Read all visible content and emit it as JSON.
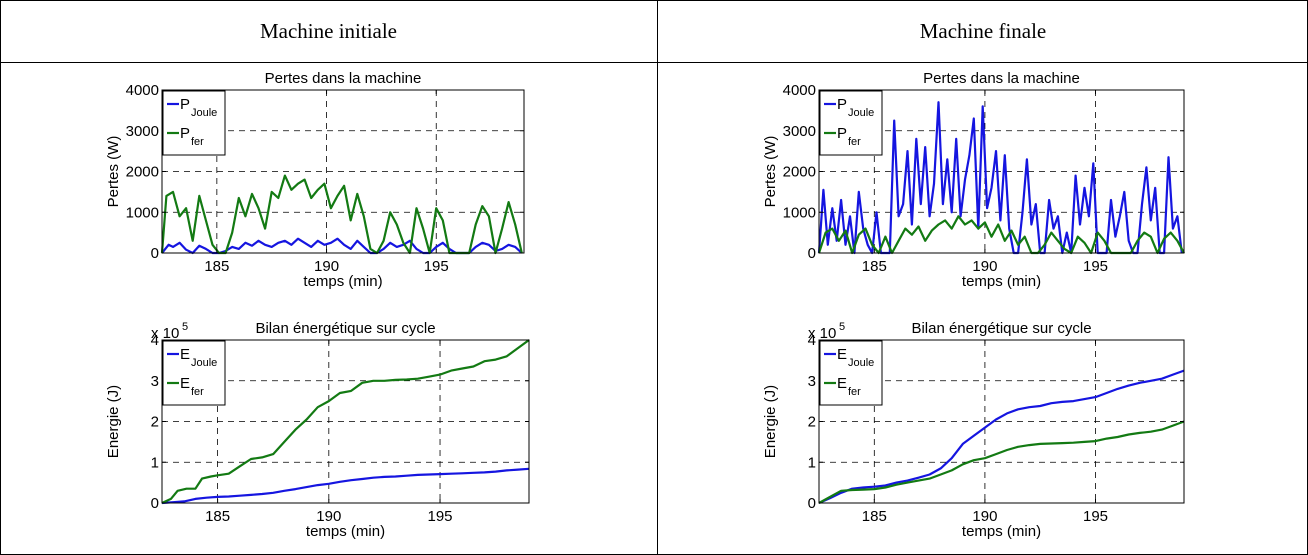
{
  "table": {
    "headers": [
      "Machine initiale",
      "Machine finale"
    ]
  },
  "colors": {
    "joule": "#1515e0",
    "fer": "#137a13",
    "grid": "#000000"
  },
  "chart_data": [
    {
      "type": "line",
      "title": "Pertes dans la machine",
      "xlabel": "temps (min)",
      "ylabel": "Pertes (W)",
      "xlim": [
        182.5,
        199
      ],
      "ylim": [
        0,
        4000
      ],
      "xticks": [
        185,
        190,
        195
      ],
      "yticks": [
        0,
        1000,
        2000,
        3000,
        4000
      ],
      "exponent": "",
      "grid": true,
      "legend_position": "top-left",
      "series": [
        {
          "name": "P",
          "sub": "Joule",
          "color": "#1515e0",
          "x": [
            182.5,
            182.8,
            183.0,
            183.3,
            183.6,
            183.9,
            184.2,
            184.5,
            184.8,
            185.1,
            185.4,
            185.7,
            186.0,
            186.3,
            186.6,
            186.9,
            187.2,
            187.5,
            187.8,
            188.1,
            188.4,
            188.7,
            189.0,
            189.3,
            189.6,
            189.9,
            190.2,
            190.5,
            190.8,
            191.1,
            191.4,
            191.7,
            192.0,
            192.3,
            192.6,
            192.9,
            193.2,
            193.5,
            193.8,
            194.1,
            194.4,
            194.7,
            195.0,
            195.3,
            195.6,
            195.9,
            196.2,
            196.5,
            196.8,
            197.1,
            197.4,
            197.7,
            198.0,
            198.3,
            198.6,
            198.9
          ],
          "y": [
            0,
            200,
            150,
            250,
            80,
            0,
            180,
            100,
            0,
            0,
            50,
            150,
            100,
            250,
            180,
            300,
            200,
            150,
            250,
            300,
            200,
            350,
            250,
            150,
            300,
            200,
            250,
            350,
            200,
            100,
            300,
            150,
            0,
            0,
            100,
            250,
            150,
            200,
            300,
            100,
            0,
            0,
            150,
            250,
            100,
            0,
            0,
            0,
            150,
            250,
            200,
            50,
            100,
            200,
            150,
            0
          ]
        },
        {
          "name": "P",
          "sub": "fer",
          "color": "#137a13",
          "x": [
            182.5,
            182.7,
            183.0,
            183.3,
            183.6,
            183.9,
            184.2,
            184.5,
            184.8,
            185.1,
            185.4,
            185.7,
            186.0,
            186.3,
            186.6,
            186.9,
            187.2,
            187.5,
            187.8,
            188.1,
            188.4,
            188.7,
            189.0,
            189.3,
            189.6,
            189.9,
            190.2,
            190.5,
            190.8,
            191.1,
            191.4,
            191.7,
            192.0,
            192.3,
            192.6,
            192.9,
            193.2,
            193.5,
            193.8,
            194.1,
            194.4,
            194.7,
            195.0,
            195.3,
            195.6,
            195.9,
            196.2,
            196.5,
            196.8,
            197.1,
            197.4,
            197.7,
            198.0,
            198.3,
            198.6,
            198.9
          ],
          "y": [
            0,
            1400,
            1500,
            900,
            1100,
            300,
            1400,
            800,
            200,
            0,
            0,
            500,
            1350,
            900,
            1450,
            1100,
            600,
            1500,
            1350,
            1900,
            1550,
            1700,
            1800,
            1350,
            1550,
            1700,
            1100,
            1400,
            1650,
            800,
            1450,
            900,
            100,
            0,
            300,
            1000,
            700,
            250,
            0,
            1100,
            600,
            0,
            1100,
            800,
            0,
            0,
            0,
            0,
            700,
            1150,
            900,
            0,
            600,
            1250,
            700,
            0
          ]
        }
      ]
    },
    {
      "type": "line",
      "title": "Pertes dans la machine",
      "xlabel": "temps (min)",
      "ylabel": "Pertes (W)",
      "xlim": [
        182.5,
        199
      ],
      "ylim": [
        0,
        4000
      ],
      "xticks": [
        185,
        190,
        195
      ],
      "yticks": [
        0,
        1000,
        2000,
        3000,
        4000
      ],
      "exponent": "",
      "grid": true,
      "legend_position": "top-left",
      "series": [
        {
          "name": "P",
          "sub": "Joule",
          "color": "#1515e0",
          "x": [
            182.5,
            182.7,
            182.9,
            183.1,
            183.3,
            183.5,
            183.7,
            183.9,
            184.1,
            184.3,
            184.5,
            184.7,
            184.9,
            185.1,
            185.3,
            185.5,
            185.7,
            185.9,
            186.1,
            186.3,
            186.5,
            186.7,
            186.9,
            187.1,
            187.3,
            187.5,
            187.7,
            187.9,
            188.1,
            188.3,
            188.5,
            188.7,
            188.9,
            189.1,
            189.3,
            189.5,
            189.7,
            189.9,
            190.1,
            190.3,
            190.5,
            190.7,
            190.9,
            191.1,
            191.3,
            191.5,
            191.7,
            191.9,
            192.1,
            192.3,
            192.5,
            192.7,
            192.9,
            193.1,
            193.3,
            193.5,
            193.7,
            193.9,
            194.1,
            194.3,
            194.5,
            194.7,
            194.9,
            195.1,
            195.3,
            195.5,
            195.7,
            195.9,
            196.1,
            196.3,
            196.5,
            196.7,
            196.9,
            197.1,
            197.3,
            197.5,
            197.7,
            197.9,
            198.1,
            198.3,
            198.5,
            198.7,
            198.9
          ],
          "y": [
            0,
            1550,
            200,
            1100,
            300,
            1300,
            200,
            900,
            0,
            1500,
            600,
            200,
            0,
            1000,
            0,
            0,
            0,
            3250,
            900,
            1200,
            2500,
            700,
            2800,
            1200,
            2600,
            900,
            1700,
            3700,
            1200,
            2300,
            1000,
            2800,
            900,
            1800,
            2400,
            3300,
            600,
            3600,
            1100,
            1600,
            2500,
            800,
            2400,
            600,
            0,
            0,
            1000,
            2300,
            700,
            1200,
            0,
            0,
            1300,
            600,
            900,
            0,
            500,
            0,
            1900,
            700,
            1600,
            900,
            2200,
            0,
            0,
            0,
            1300,
            400,
            900,
            1500,
            300,
            0,
            0,
            1200,
            2100,
            800,
            1600,
            0,
            0,
            2350,
            600,
            900,
            0
          ]
        },
        {
          "name": "P",
          "sub": "fer",
          "color": "#137a13",
          "x": [
            182.5,
            182.8,
            183.1,
            183.4,
            183.7,
            184.0,
            184.3,
            184.6,
            184.9,
            185.2,
            185.5,
            185.8,
            186.1,
            186.4,
            186.7,
            187.0,
            187.3,
            187.6,
            187.9,
            188.2,
            188.5,
            188.8,
            189.1,
            189.4,
            189.7,
            190.0,
            190.3,
            190.6,
            190.9,
            191.2,
            191.5,
            191.8,
            192.1,
            192.4,
            192.7,
            193.0,
            193.3,
            193.6,
            193.9,
            194.2,
            194.5,
            194.8,
            195.1,
            195.4,
            195.7,
            196.0,
            196.3,
            196.6,
            196.9,
            197.2,
            197.5,
            197.8,
            198.1,
            198.4,
            198.7,
            199.0
          ],
          "y": [
            0,
            500,
            600,
            300,
            550,
            0,
            450,
            600,
            200,
            0,
            400,
            0,
            300,
            600,
            450,
            650,
            300,
            550,
            700,
            800,
            600,
            900,
            700,
            800,
            600,
            750,
            400,
            700,
            300,
            550,
            200,
            400,
            0,
            0,
            200,
            500,
            300,
            100,
            0,
            400,
            250,
            0,
            500,
            300,
            0,
            0,
            0,
            0,
            300,
            500,
            400,
            0,
            350,
            500,
            300,
            0
          ]
        }
      ]
    },
    {
      "type": "line",
      "title": "Bilan énergétique sur cycle",
      "xlabel": "temps (min)",
      "ylabel": "Energie (J)",
      "xlim": [
        182.5,
        199
      ],
      "ylim": [
        0,
        4
      ],
      "xticks": [
        185,
        190,
        195
      ],
      "yticks": [
        0,
        1,
        2,
        3,
        4
      ],
      "exponent": "5",
      "grid": true,
      "legend_position": "top-left",
      "series": [
        {
          "name": "E",
          "sub": "Joule",
          "color": "#1515e0",
          "x": [
            182.5,
            183.0,
            183.5,
            184.0,
            184.5,
            185.0,
            185.5,
            186.0,
            186.5,
            187.0,
            187.5,
            188.0,
            188.5,
            189.0,
            189.5,
            190.0,
            190.5,
            191.0,
            191.5,
            192.0,
            192.5,
            193.0,
            193.5,
            194.0,
            194.5,
            195.0,
            195.5,
            196.0,
            196.5,
            197.0,
            197.5,
            198.0,
            198.5,
            199.0
          ],
          "y": [
            0,
            0.02,
            0.04,
            0.1,
            0.13,
            0.15,
            0.16,
            0.18,
            0.2,
            0.22,
            0.25,
            0.3,
            0.34,
            0.39,
            0.44,
            0.47,
            0.52,
            0.56,
            0.59,
            0.62,
            0.64,
            0.65,
            0.67,
            0.69,
            0.7,
            0.71,
            0.72,
            0.73,
            0.74,
            0.75,
            0.77,
            0.8,
            0.82,
            0.84
          ]
        },
        {
          "name": "E",
          "sub": "fer",
          "color": "#137a13",
          "x": [
            182.5,
            182.9,
            183.2,
            183.6,
            184.0,
            184.3,
            184.7,
            185.0,
            185.5,
            186.0,
            186.5,
            187.0,
            187.5,
            188.0,
            188.5,
            189.0,
            189.5,
            190.0,
            190.5,
            191.0,
            191.5,
            192.0,
            192.5,
            193.0,
            193.5,
            194.0,
            194.5,
            195.0,
            195.5,
            196.0,
            196.5,
            197.0,
            197.5,
            198.0,
            198.5,
            199.0
          ],
          "y": [
            0,
            0.1,
            0.3,
            0.35,
            0.35,
            0.6,
            0.65,
            0.68,
            0.72,
            0.9,
            1.08,
            1.12,
            1.2,
            1.5,
            1.8,
            2.05,
            2.35,
            2.5,
            2.7,
            2.75,
            2.95,
            3.0,
            3.0,
            3.02,
            3.03,
            3.05,
            3.1,
            3.15,
            3.25,
            3.3,
            3.35,
            3.48,
            3.52,
            3.6,
            3.8,
            4.0
          ]
        }
      ]
    },
    {
      "type": "line",
      "title": "Bilan énergétique sur cycle",
      "xlabel": "temps (min)",
      "ylabel": "Energie (J)",
      "xlim": [
        182.5,
        199
      ],
      "ylim": [
        0,
        4
      ],
      "xticks": [
        185,
        190,
        195
      ],
      "yticks": [
        0,
        1,
        2,
        3,
        4
      ],
      "exponent": "5",
      "grid": true,
      "legend_position": "top-left",
      "series": [
        {
          "name": "E",
          "sub": "Joule",
          "color": "#1515e0",
          "x": [
            182.5,
            183.0,
            183.5,
            184.0,
            184.5,
            185.0,
            185.5,
            186.0,
            186.5,
            187.0,
            187.5,
            188.0,
            188.5,
            189.0,
            189.5,
            190.0,
            190.5,
            191.0,
            191.5,
            192.0,
            192.5,
            193.0,
            193.5,
            194.0,
            194.5,
            195.0,
            195.5,
            196.0,
            196.5,
            197.0,
            197.5,
            198.0,
            198.5,
            199.0
          ],
          "y": [
            0,
            0.12,
            0.25,
            0.35,
            0.38,
            0.4,
            0.43,
            0.5,
            0.55,
            0.62,
            0.7,
            0.85,
            1.1,
            1.45,
            1.65,
            1.85,
            2.05,
            2.2,
            2.3,
            2.35,
            2.38,
            2.45,
            2.48,
            2.5,
            2.55,
            2.6,
            2.7,
            2.8,
            2.88,
            2.95,
            3.0,
            3.05,
            3.15,
            3.25
          ]
        },
        {
          "name": "E",
          "sub": "fer",
          "color": "#137a13",
          "x": [
            182.5,
            183.0,
            183.5,
            184.0,
            184.5,
            185.0,
            185.5,
            186.0,
            186.5,
            187.0,
            187.5,
            188.0,
            188.5,
            189.0,
            189.5,
            190.0,
            190.5,
            191.0,
            191.5,
            192.0,
            192.5,
            193.0,
            193.5,
            194.0,
            194.5,
            195.0,
            195.5,
            196.0,
            196.5,
            197.0,
            197.5,
            198.0,
            198.5,
            199.0
          ],
          "y": [
            0,
            0.15,
            0.3,
            0.32,
            0.33,
            0.34,
            0.38,
            0.45,
            0.5,
            0.55,
            0.6,
            0.7,
            0.8,
            0.95,
            1.05,
            1.1,
            1.2,
            1.3,
            1.38,
            1.42,
            1.45,
            1.46,
            1.47,
            1.48,
            1.5,
            1.52,
            1.58,
            1.62,
            1.68,
            1.72,
            1.75,
            1.8,
            1.9,
            2.0
          ]
        }
      ]
    }
  ]
}
